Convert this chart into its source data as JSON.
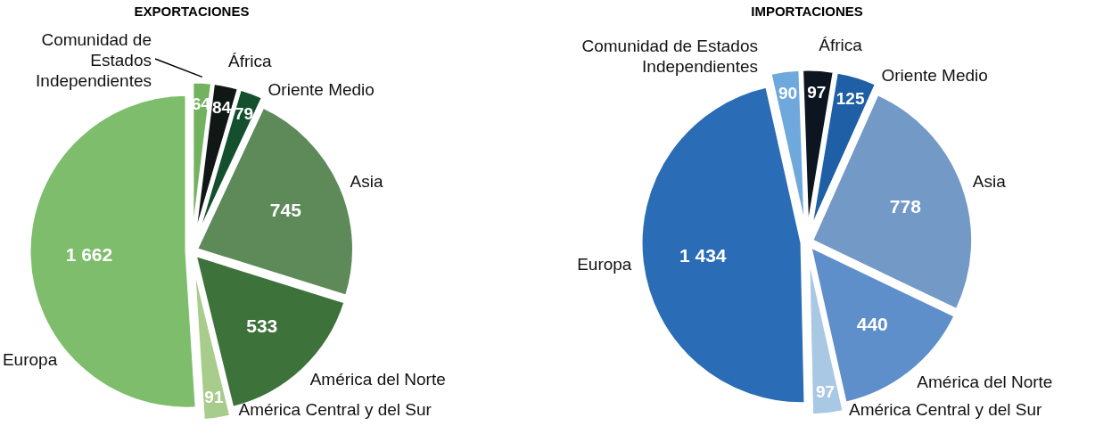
{
  "chart_data": [
    {
      "type": "pie",
      "title": "EXPORTACIONES",
      "categories": [
        "Comunidad de Estados Independientes",
        "África",
        "Oriente Medio",
        "Asia",
        "América del Norte",
        "América Central y del Sur",
        "Europa"
      ],
      "values": [
        64,
        84,
        79,
        745,
        533,
        91,
        1662
      ],
      "value_labels": [
        "64",
        "84",
        "79",
        "745",
        "533",
        "91",
        "1 662"
      ],
      "colors": [
        "#73b35f",
        "#111714",
        "#14502e",
        "#5e8a5a",
        "#3d733a",
        "#a8cc8c",
        "#7dbd6c"
      ],
      "legend": false
    },
    {
      "type": "pie",
      "title": "IMPORTACIONES",
      "categories": [
        "Comunidad de Estados Independientes",
        "África",
        "Oriente Medio",
        "Asia",
        "América del Norte",
        "América Central y del Sur",
        "Europa"
      ],
      "values": [
        90,
        97,
        125,
        778,
        440,
        97,
        1434
      ],
      "value_labels": [
        "90",
        "97",
        "125",
        "778",
        "440",
        "97",
        "1 434"
      ],
      "colors": [
        "#6fa8dc",
        "#0d1520",
        "#1f5fa5",
        "#7399c6",
        "#5f8fcb",
        "#a8c8e4",
        "#2a6cb5"
      ],
      "legend": false
    }
  ]
}
